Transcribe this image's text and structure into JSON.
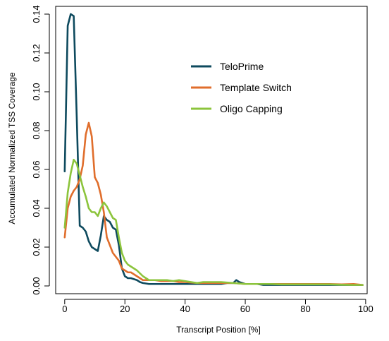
{
  "chart_data": {
    "type": "line",
    "title": "",
    "xlabel": "Transcript Position [%]",
    "ylabel": "Accumulated Normalized TSS Coverage",
    "xlim": [
      -3,
      100.5
    ],
    "ylim": [
      -0.004,
      0.144
    ],
    "xticks": [
      {
        "value": 0,
        "label": "0"
      },
      {
        "value": 20,
        "label": "20"
      },
      {
        "value": 40,
        "label": "40"
      },
      {
        "value": 60,
        "label": "60"
      },
      {
        "value": 80,
        "label": "80"
      },
      {
        "value": 100,
        "label": "100"
      }
    ],
    "yticks": [
      {
        "value": 0.0,
        "label": "0.00"
      },
      {
        "value": 0.02,
        "label": "0.02"
      },
      {
        "value": 0.04,
        "label": "0.04"
      },
      {
        "value": 0.06,
        "label": "0.06"
      },
      {
        "value": 0.08,
        "label": "0.08"
      },
      {
        "value": 0.1,
        "label": "0.10"
      },
      {
        "value": 0.12,
        "label": "0.12"
      },
      {
        "value": 0.14,
        "label": "0.14"
      }
    ],
    "grid": false,
    "legend_position": "top-right",
    "series": [
      {
        "name": "TeloPrime",
        "color": "#0e4a5e",
        "points": [
          [
            0,
            0.059
          ],
          [
            1,
            0.134
          ],
          [
            2,
            0.14
          ],
          [
            3,
            0.139
          ],
          [
            4,
            0.087
          ],
          [
            5,
            0.031
          ],
          [
            6,
            0.03
          ],
          [
            7,
            0.028
          ],
          [
            8,
            0.023
          ],
          [
            9,
            0.02
          ],
          [
            10,
            0.019
          ],
          [
            11,
            0.018
          ],
          [
            12,
            0.026
          ],
          [
            13,
            0.036
          ],
          [
            14,
            0.034
          ],
          [
            15,
            0.033
          ],
          [
            16,
            0.03
          ],
          [
            17,
            0.029
          ],
          [
            18,
            0.021
          ],
          [
            19,
            0.009
          ],
          [
            20,
            0.005
          ],
          [
            21,
            0.004
          ],
          [
            22,
            0.004
          ],
          [
            23,
            0.0035
          ],
          [
            24,
            0.003
          ],
          [
            25,
            0.002
          ],
          [
            26,
            0.0015
          ],
          [
            28,
            0.001
          ],
          [
            30,
            0.001
          ],
          [
            32,
            0.001
          ],
          [
            34,
            0.001
          ],
          [
            36,
            0.001
          ],
          [
            38,
            0.001
          ],
          [
            40,
            0.001
          ],
          [
            44,
            0.001
          ],
          [
            48,
            0.001
          ],
          [
            52,
            0.001
          ],
          [
            54,
            0.0015
          ],
          [
            56,
            0.0015
          ],
          [
            57,
            0.003
          ],
          [
            58,
            0.002
          ],
          [
            60,
            0.001
          ],
          [
            62,
            0.001
          ],
          [
            64,
            0.001
          ],
          [
            66,
            0.0005
          ],
          [
            70,
            0.0005
          ],
          [
            74,
            0.0005
          ],
          [
            80,
            0.0005
          ],
          [
            84,
            0.0005
          ],
          [
            90,
            0.0005
          ],
          [
            96,
            0.0005
          ],
          [
            99,
            0.0005
          ]
        ]
      },
      {
        "name": "Template Switch",
        "color": "#e06e2c",
        "points": [
          [
            0,
            0.025
          ],
          [
            1,
            0.04
          ],
          [
            2,
            0.046
          ],
          [
            3,
            0.049
          ],
          [
            4,
            0.051
          ],
          [
            5,
            0.055
          ],
          [
            6,
            0.062
          ],
          [
            7,
            0.078
          ],
          [
            8,
            0.084
          ],
          [
            9,
            0.077
          ],
          [
            10,
            0.056
          ],
          [
            11,
            0.053
          ],
          [
            12,
            0.047
          ],
          [
            13,
            0.038
          ],
          [
            14,
            0.025
          ],
          [
            15,
            0.021
          ],
          [
            16,
            0.017
          ],
          [
            17,
            0.015
          ],
          [
            18,
            0.013
          ],
          [
            19,
            0.009
          ],
          [
            20,
            0.008
          ],
          [
            21,
            0.007
          ],
          [
            22,
            0.007
          ],
          [
            23,
            0.006
          ],
          [
            24,
            0.005
          ],
          [
            25,
            0.004
          ],
          [
            26,
            0.003
          ],
          [
            28,
            0.003
          ],
          [
            30,
            0.003
          ],
          [
            32,
            0.0025
          ],
          [
            34,
            0.0025
          ],
          [
            36,
            0.0025
          ],
          [
            38,
            0.002
          ],
          [
            40,
            0.002
          ],
          [
            44,
            0.0015
          ],
          [
            48,
            0.0015
          ],
          [
            52,
            0.0015
          ],
          [
            56,
            0.0015
          ],
          [
            60,
            0.001
          ],
          [
            64,
            0.001
          ],
          [
            68,
            0.001
          ],
          [
            72,
            0.001
          ],
          [
            76,
            0.001
          ],
          [
            80,
            0.001
          ],
          [
            84,
            0.001
          ],
          [
            88,
            0.001
          ],
          [
            92,
            0.0008
          ],
          [
            96,
            0.001
          ],
          [
            99,
            0.0005
          ]
        ]
      },
      {
        "name": "Oligo Capping",
        "color": "#8cc43c",
        "points": [
          [
            0,
            0.03
          ],
          [
            1,
            0.048
          ],
          [
            2,
            0.058
          ],
          [
            3,
            0.065
          ],
          [
            4,
            0.063
          ],
          [
            5,
            0.057
          ],
          [
            6,
            0.051
          ],
          [
            7,
            0.046
          ],
          [
            8,
            0.04
          ],
          [
            9,
            0.038
          ],
          [
            10,
            0.038
          ],
          [
            11,
            0.036
          ],
          [
            12,
            0.04
          ],
          [
            13,
            0.043
          ],
          [
            14,
            0.041
          ],
          [
            15,
            0.038
          ],
          [
            16,
            0.035
          ],
          [
            17,
            0.034
          ],
          [
            18,
            0.025
          ],
          [
            19,
            0.017
          ],
          [
            20,
            0.013
          ],
          [
            21,
            0.011
          ],
          [
            22,
            0.01
          ],
          [
            24,
            0.008
          ],
          [
            26,
            0.005
          ],
          [
            28,
            0.003
          ],
          [
            30,
            0.003
          ],
          [
            32,
            0.003
          ],
          [
            34,
            0.003
          ],
          [
            36,
            0.0025
          ],
          [
            38,
            0.003
          ],
          [
            40,
            0.0025
          ],
          [
            42,
            0.002
          ],
          [
            44,
            0.0015
          ],
          [
            46,
            0.002
          ],
          [
            48,
            0.002
          ],
          [
            52,
            0.002
          ],
          [
            56,
            0.0015
          ],
          [
            60,
            0.001
          ],
          [
            64,
            0.001
          ],
          [
            68,
            0.001
          ],
          [
            72,
            0.0008
          ],
          [
            76,
            0.0008
          ],
          [
            80,
            0.0008
          ],
          [
            84,
            0.0008
          ],
          [
            88,
            0.0008
          ],
          [
            92,
            0.0006
          ],
          [
            96,
            0.0005
          ],
          [
            99,
            0.0005
          ]
        ]
      }
    ]
  }
}
